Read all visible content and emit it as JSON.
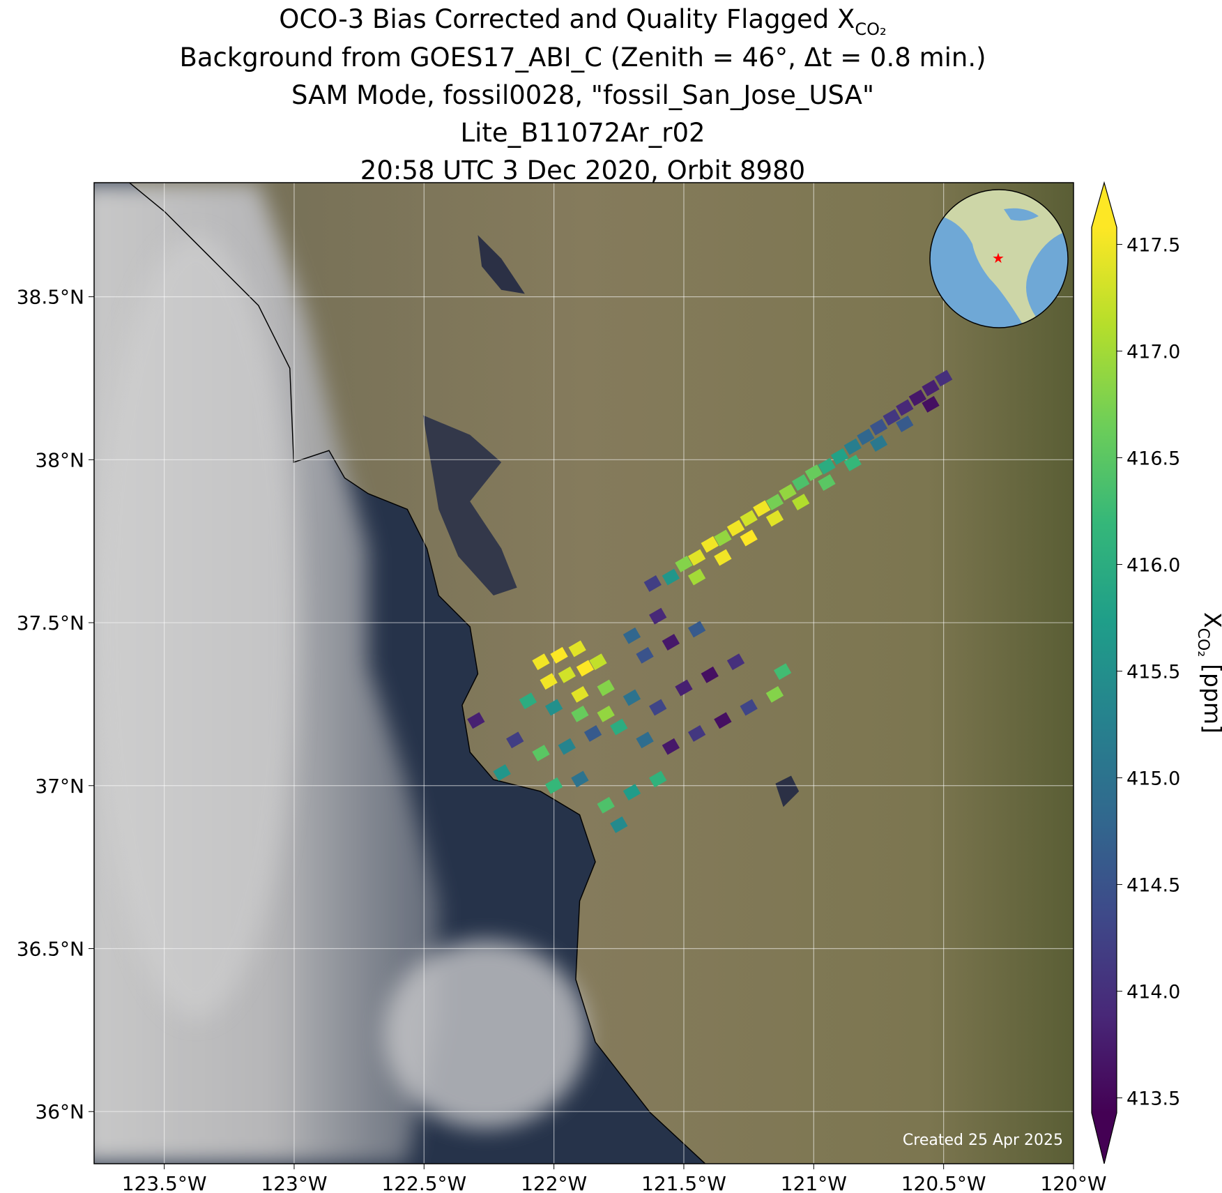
{
  "chart_data": {
    "type": "map",
    "title": "OCO-3 Bias Corrected and Quality Flagged X",
    "title_subscript": "CO₂",
    "subtitles": [
      "Background from GOES17_ABI_C (Zenith = 46°, Δt =  0.8 min.)",
      "SAM Mode, fossil0028, \"fossil_San_Jose_USA\"",
      "Lite_B11072Ar_r02",
      "20:58 UTC 3 Dec 2020, Orbit 8980"
    ],
    "note": "Created 25 Apr 2025",
    "xlim": [
      -123.77,
      -120.0
    ],
    "ylim": [
      35.84,
      38.85
    ],
    "xticks": [
      {
        "value": -123.5,
        "label": "123.5°W"
      },
      {
        "value": -123,
        "label": "123°W"
      },
      {
        "value": -122.5,
        "label": "122.5°W"
      },
      {
        "value": -122,
        "label": "122°W"
      },
      {
        "value": -121.5,
        "label": "121.5°W"
      },
      {
        "value": -121,
        "label": "121°W"
      },
      {
        "value": -120.5,
        "label": "120.5°W"
      },
      {
        "value": -120,
        "label": "120°W"
      }
    ],
    "yticks": [
      {
        "value": 36,
        "label": "36°N"
      },
      {
        "value": 36.5,
        "label": "36.5°N"
      },
      {
        "value": 37,
        "label": "37°N"
      },
      {
        "value": 37.5,
        "label": "37.5°N"
      },
      {
        "value": 38,
        "label": "38°N"
      },
      {
        "value": 38.5,
        "label": "38.5°N"
      }
    ],
    "grid": true,
    "colormap": "viridis",
    "clim": [
      413.43,
      417.58
    ],
    "cticks": [
      413.5,
      {
        "value": 414,
        "label": "414.0"
      },
      414.5,
      {
        "value": 415,
        "label": "415.0"
      },
      415.5,
      {
        "value": 416,
        "label": "416.0"
      },
      416.5,
      {
        "value": 417,
        "label": "417.0"
      },
      417.5
    ],
    "colorbar_label": "X",
    "colorbar_label_subscript": "CO₂",
    "colorbar_label_unit": "[ppm]",
    "x": [
      -121.62,
      -121.55,
      -121.5,
      -121.45,
      -121.4,
      -121.35,
      -121.3,
      -121.25,
      -121.2,
      -121.15,
      -121.1,
      -121.05,
      -121.0,
      -120.95,
      -120.9,
      -120.85,
      -120.8,
      -120.75,
      -120.7,
      -120.65,
      -120.6,
      -120.55,
      -120.5,
      -121.45,
      -121.35,
      -121.25,
      -121.15,
      -121.05,
      -120.95,
      -120.85,
      -120.75,
      -120.65,
      -120.55,
      -122.05,
      -121.98,
      -121.91,
      -122.02,
      -121.95,
      -121.88,
      -121.83,
      -122.1,
      -122.0,
      -121.9,
      -121.8,
      -121.7,
      -121.6,
      -121.5,
      -121.4,
      -121.3,
      -121.65,
      -121.55,
      -121.45,
      -121.6,
      -121.7,
      -122.3,
      -122.15,
      -122.05,
      -121.95,
      -121.85,
      -121.75,
      -121.65,
      -121.55,
      -121.45,
      -121.35,
      -121.25,
      -121.15,
      -121.12,
      -122.2,
      -122.0,
      -121.9,
      -121.8,
      -121.7,
      -121.6,
      -121.75,
      -121.9,
      -121.8
    ],
    "y": [
      37.62,
      37.64,
      37.68,
      37.7,
      37.74,
      37.76,
      37.79,
      37.82,
      37.85,
      37.87,
      37.9,
      37.93,
      37.96,
      37.98,
      38.01,
      38.04,
      38.07,
      38.1,
      38.13,
      38.16,
      38.19,
      38.22,
      38.25,
      37.64,
      37.7,
      37.76,
      37.82,
      37.87,
      37.93,
      37.99,
      38.05,
      38.11,
      38.17,
      37.38,
      37.4,
      37.42,
      37.32,
      37.34,
      37.36,
      37.38,
      37.26,
      37.24,
      37.28,
      37.3,
      37.27,
      37.24,
      37.3,
      37.34,
      37.38,
      37.4,
      37.44,
      37.48,
      37.52,
      37.46,
      37.2,
      37.14,
      37.1,
      37.12,
      37.16,
      37.18,
      37.14,
      37.12,
      37.16,
      37.2,
      37.24,
      37.28,
      37.35,
      37.04,
      37.0,
      37.02,
      36.94,
      36.98,
      37.02,
      36.88,
      37.22,
      37.22
    ],
    "values": [
      414.2,
      415.6,
      416.8,
      417.4,
      417.5,
      416.9,
      417.5,
      417.3,
      417.5,
      416.7,
      416.9,
      416.4,
      416.6,
      416.0,
      415.8,
      415.2,
      414.8,
      414.5,
      414.1,
      413.9,
      413.7,
      413.8,
      414.0,
      417.0,
      417.5,
      417.6,
      417.4,
      417.1,
      416.5,
      416.2,
      415.1,
      414.6,
      413.6,
      417.5,
      417.6,
      417.4,
      417.5,
      417.3,
      417.6,
      417.2,
      416.0,
      415.5,
      417.4,
      416.8,
      415.0,
      414.3,
      413.8,
      413.6,
      414.0,
      414.5,
      413.7,
      414.6,
      413.9,
      414.8,
      413.8,
      414.2,
      416.5,
      415.3,
      414.6,
      416.0,
      414.9,
      413.7,
      414.1,
      413.6,
      414.3,
      416.8,
      416.3,
      415.6,
      416.2,
      415.0,
      416.4,
      415.7,
      416.1,
      415.4,
      416.6,
      416.9
    ]
  }
}
